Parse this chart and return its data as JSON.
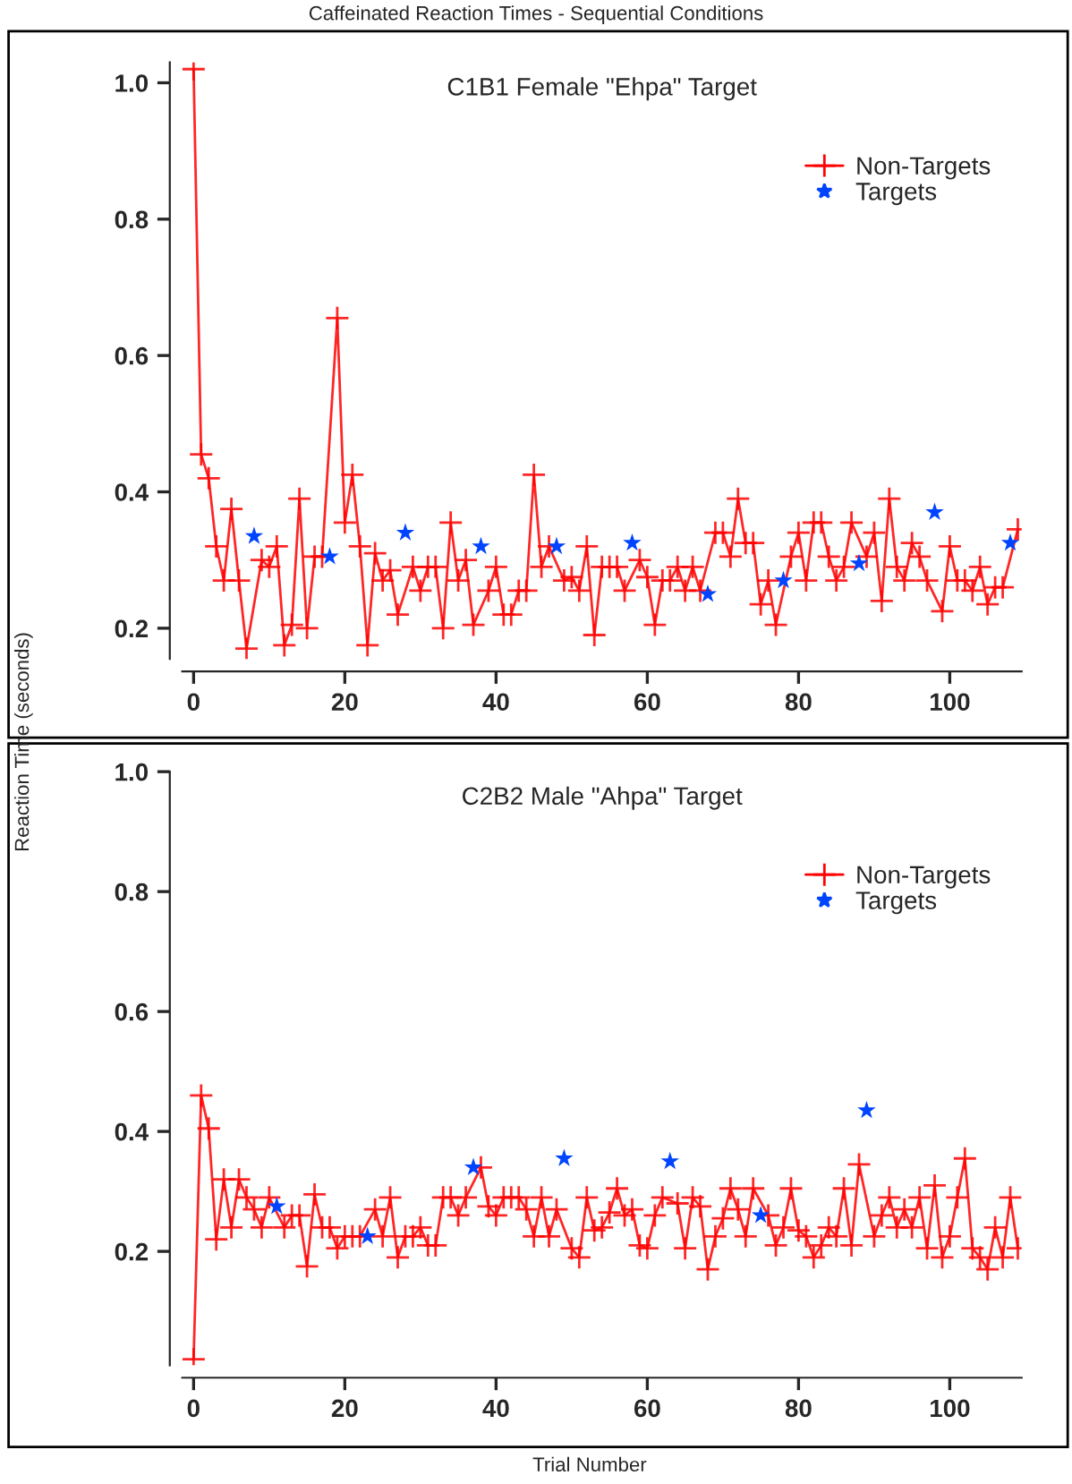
{
  "chart_data": [
    {
      "type": "line",
      "title": "C1B1 Female \"Ehpa\" Target",
      "ylabel": "Reaction Time (seconds)",
      "annotations": [
        "Caffeinated Reaction Times - Sequential Conditions"
      ],
      "xlim": [
        -1.5,
        109.5
      ],
      "ylim": [
        0.155,
        1.03
      ],
      "xticks": [
        0,
        20,
        40,
        60,
        80,
        100
      ],
      "yticks": [
        {
          "value": 0.2,
          "label": "0.2"
        },
        {
          "value": 0.4,
          "label": "0.4"
        },
        {
          "value": 0.6,
          "label": "0.6"
        },
        {
          "value": 0.8,
          "label": "0.8"
        },
        {
          "value": 1.0,
          "label": "1.0"
        }
      ],
      "grid": false,
      "legend": "top right",
      "series": [
        {
          "name": "Non-Targets",
          "type": "line",
          "color": "#ff0000",
          "marker": "cross",
          "x": [
            0,
            1,
            2,
            3,
            4,
            5,
            6,
            7,
            9,
            10,
            11,
            12,
            13,
            14,
            15,
            16,
            17,
            19,
            20,
            21,
            22,
            23,
            24,
            25,
            26,
            27,
            29,
            30,
            31,
            32,
            33,
            34,
            35,
            36,
            37,
            39,
            40,
            41,
            42,
            43,
            44,
            45,
            46,
            47,
            49,
            50,
            51,
            52,
            53,
            54,
            55,
            56,
            57,
            59,
            60,
            61,
            62,
            63,
            64,
            65,
            66,
            67,
            69,
            70,
            71,
            72,
            73,
            74,
            75,
            76,
            77,
            79,
            80,
            81,
            82,
            83,
            84,
            85,
            86,
            87,
            89,
            90,
            91,
            92,
            93,
            94,
            95,
            96,
            97,
            99,
            100,
            101,
            102,
            103,
            104,
            105,
            106,
            107,
            109
          ],
          "values": [
            1.02,
            0.455,
            0.42,
            0.32,
            0.27,
            0.375,
            0.27,
            0.17,
            0.3,
            0.29,
            0.32,
            0.175,
            0.205,
            0.39,
            0.2,
            0.305,
            0.305,
            0.655,
            0.355,
            0.425,
            0.32,
            0.175,
            0.31,
            0.27,
            0.285,
            0.22,
            0.29,
            0.255,
            0.29,
            0.29,
            0.2,
            0.355,
            0.27,
            0.3,
            0.205,
            0.255,
            0.29,
            0.22,
            0.22,
            0.255,
            0.255,
            0.425,
            0.29,
            0.32,
            0.27,
            0.275,
            0.255,
            0.32,
            0.19,
            0.29,
            0.29,
            0.29,
            0.255,
            0.3,
            0.275,
            0.205,
            0.27,
            0.27,
            0.29,
            0.255,
            0.29,
            0.255,
            0.34,
            0.34,
            0.305,
            0.39,
            0.325,
            0.325,
            0.235,
            0.27,
            0.205,
            0.305,
            0.34,
            0.27,
            0.355,
            0.355,
            0.305,
            0.27,
            0.29,
            0.355,
            0.305,
            0.34,
            0.24,
            0.39,
            0.29,
            0.27,
            0.325,
            0.305,
            0.27,
            0.225,
            0.32,
            0.27,
            0.27,
            0.255,
            0.29,
            0.235,
            0.26,
            0.26,
            0.345
          ]
        },
        {
          "name": "Targets",
          "type": "scatter",
          "color": "#0044ff",
          "marker": "star",
          "x": [
            8,
            18,
            28,
            38,
            48,
            58,
            68,
            78,
            88,
            98,
            108
          ],
          "values": [
            0.335,
            0.305,
            0.34,
            0.32,
            0.32,
            0.325,
            0.25,
            0.27,
            0.295,
            0.37,
            0.325
          ]
        }
      ]
    },
    {
      "type": "line",
      "title": "C2B2 Male \"Ahpa\" Target",
      "xlabel": "Trial Number",
      "xlim": [
        -1.5,
        109.5
      ],
      "ylim": [
        0.01,
        1.0
      ],
      "xticks": [
        0,
        20,
        40,
        60,
        80,
        100
      ],
      "yticks": [
        {
          "value": 0.2,
          "label": "0.2"
        },
        {
          "value": 0.4,
          "label": "0.4"
        },
        {
          "value": 0.6,
          "label": "0.6"
        },
        {
          "value": 0.8,
          "label": "0.8"
        },
        {
          "value": 1.0,
          "label": "1.0"
        }
      ],
      "grid": false,
      "legend": "top right",
      "series": [
        {
          "name": "Non-Targets",
          "type": "line",
          "color": "#ff0000",
          "marker": "cross",
          "x": [
            0,
            1,
            2,
            3,
            4,
            5,
            6,
            7,
            8,
            9,
            10,
            12,
            13,
            14,
            15,
            16,
            17,
            18,
            19,
            20,
            21,
            22,
            24,
            25,
            26,
            27,
            28,
            29,
            30,
            31,
            32,
            33,
            34,
            35,
            36,
            38,
            39,
            40,
            41,
            42,
            43,
            44,
            45,
            46,
            47,
            48,
            50,
            51,
            52,
            53,
            54,
            55,
            56,
            57,
            58,
            59,
            60,
            61,
            62,
            64,
            65,
            66,
            67,
            68,
            69,
            70,
            71,
            72,
            73,
            74,
            76,
            77,
            78,
            79,
            80,
            81,
            82,
            83,
            84,
            85,
            86,
            87,
            88,
            90,
            91,
            92,
            93,
            94,
            95,
            96,
            97,
            98,
            99,
            100,
            101,
            102,
            103,
            104,
            105,
            106,
            107,
            108,
            109
          ],
          "values": [
            0.02,
            0.46,
            0.405,
            0.22,
            0.32,
            0.24,
            0.32,
            0.29,
            0.27,
            0.24,
            0.29,
            0.24,
            0.26,
            0.26,
            0.175,
            0.295,
            0.24,
            0.24,
            0.205,
            0.225,
            0.225,
            0.225,
            0.27,
            0.225,
            0.29,
            0.19,
            0.225,
            0.225,
            0.24,
            0.21,
            0.21,
            0.29,
            0.29,
            0.26,
            0.29,
            0.34,
            0.275,
            0.26,
            0.29,
            0.29,
            0.29,
            0.27,
            0.225,
            0.29,
            0.225,
            0.27,
            0.205,
            0.19,
            0.29,
            0.235,
            0.24,
            0.265,
            0.305,
            0.26,
            0.27,
            0.21,
            0.205,
            0.26,
            0.29,
            0.28,
            0.205,
            0.29,
            0.275,
            0.17,
            0.225,
            0.255,
            0.305,
            0.27,
            0.225,
            0.305,
            0.26,
            0.21,
            0.24,
            0.305,
            0.235,
            0.225,
            0.19,
            0.21,
            0.24,
            0.225,
            0.305,
            0.21,
            0.345,
            0.225,
            0.26,
            0.29,
            0.24,
            0.27,
            0.24,
            0.29,
            0.205,
            0.31,
            0.19,
            0.225,
            0.29,
            0.355,
            0.205,
            0.19,
            0.17,
            0.24,
            0.19,
            0.29,
            0.205
          ]
        },
        {
          "name": "Targets",
          "type": "scatter",
          "color": "#0044ff",
          "marker": "star",
          "x": [
            11,
            23,
            37,
            49,
            63,
            75,
            89
          ],
          "values": [
            0.275,
            0.225,
            0.34,
            0.355,
            0.35,
            0.26,
            0.435
          ]
        }
      ]
    }
  ]
}
